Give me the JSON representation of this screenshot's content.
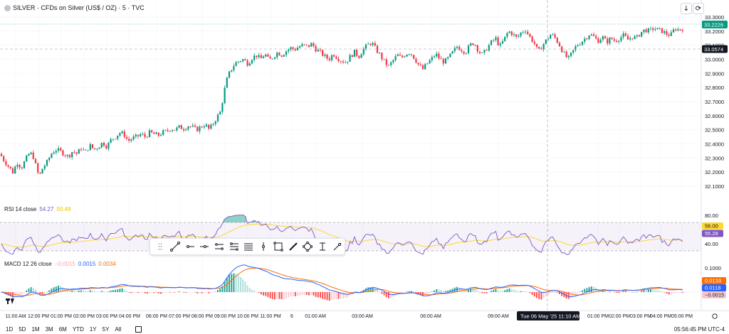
{
  "header": {
    "title": "SILVER · CFDs on Silver (US$ / OZ) · 5 · TVC",
    "symbol_icon": "silver-coin-icon",
    "down_icon": "download-arrow-icon",
    "fullscreen_icon": "fullscreen-icon"
  },
  "rsi": {
    "label": "RSI 14 close",
    "value": "54.27",
    "ma_value": "50.48",
    "upper_tag": "56.00",
    "lower_tag": "55.28",
    "levels": [
      "80.00",
      "40.00"
    ]
  },
  "macd": {
    "label": "MACD 12 26 close",
    "hist_value": "−0.0015",
    "macd_value": "0.0015",
    "signal_value": "0.0034",
    "tags": [
      "0.0133",
      "0.0118",
      "−0.0015"
    ],
    "level": "0.1000"
  },
  "price_tags": {
    "last": "33.2226",
    "crosshair": "33.0574"
  },
  "crosshair_time": "Tue 06 May '25   11:10 AM",
  "timeframes": [
    "1D",
    "5D",
    "1M",
    "3M",
    "6M",
    "YTD",
    "1Y",
    "5Y",
    "All"
  ],
  "clock": "05:56:45 PM UTC-4",
  "colors": {
    "up": "#089981",
    "down": "#f23645",
    "rsi": "#7e57c2",
    "rsi_ma": "#fdd835",
    "macd": "#2962ff",
    "signal": "#ff6d00",
    "last_tag": "#089981"
  },
  "chart_data": {
    "type": "candlestick",
    "title": "SILVER · CFDs on Silver (US$ / OZ) · 5 · TVC",
    "y_ticks": [
      "33.3000",
      "33.2000",
      "33.1000",
      "33.0000",
      "32.9000",
      "32.8000",
      "32.7000",
      "32.6000",
      "32.5000",
      "32.4000",
      "32.3000",
      "32.2000",
      "32.1000"
    ],
    "ylim": [
      32.05,
      33.33
    ],
    "x_ticks": [
      "11:00 AM",
      "12:00 PM",
      "01:00 PM",
      "02:00 PM",
      "03:00 PM",
      "04:00 PM",
      "06:00 PM",
      "07:00 PM",
      "08:00 PM",
      "09:00 PM",
      "10:00 PM",
      "11:00 PM",
      "6",
      "01:00 AM",
      "03:00 AM",
      "06:00 AM",
      "09:00 AM",
      "01:00 PM",
      "02:00 PM",
      "03:00 PM",
      "04:00 PM",
      "05:00 PM"
    ],
    "close_path": [
      [
        0,
        32.33
      ],
      [
        6,
        32.28
      ],
      [
        12,
        32.24
      ],
      [
        18,
        32.2
      ],
      [
        24,
        32.27
      ],
      [
        30,
        32.23
      ],
      [
        36,
        32.29
      ],
      [
        42,
        32.34
      ],
      [
        48,
        32.3
      ],
      [
        52,
        32.2
      ],
      [
        56,
        32.18
      ],
      [
        60,
        32.23
      ],
      [
        66,
        32.27
      ],
      [
        72,
        32.33
      ],
      [
        78,
        32.36
      ],
      [
        84,
        32.35
      ],
      [
        90,
        32.33
      ],
      [
        96,
        32.31
      ],
      [
        102,
        32.35
      ],
      [
        108,
        32.33
      ],
      [
        114,
        32.37
      ],
      [
        120,
        32.34
      ],
      [
        126,
        32.39
      ],
      [
        132,
        32.36
      ],
      [
        138,
        32.38
      ],
      [
        144,
        32.41
      ],
      [
        150,
        32.38
      ],
      [
        156,
        32.43
      ],
      [
        162,
        32.45
      ],
      [
        168,
        32.48
      ],
      [
        174,
        32.47
      ],
      [
        180,
        32.42
      ],
      [
        186,
        32.44
      ],
      [
        192,
        32.45
      ],
      [
        198,
        32.47
      ],
      [
        204,
        32.45
      ],
      [
        210,
        32.48
      ],
      [
        216,
        32.47
      ],
      [
        222,
        32.46
      ],
      [
        228,
        32.48
      ],
      [
        234,
        32.49
      ],
      [
        240,
        32.51
      ],
      [
        246,
        32.5
      ],
      [
        252,
        32.52
      ],
      [
        258,
        32.51
      ],
      [
        264,
        32.53
      ],
      [
        270,
        32.52
      ],
      [
        276,
        32.5
      ],
      [
        282,
        32.52
      ],
      [
        288,
        32.54
      ],
      [
        294,
        32.5
      ],
      [
        300,
        32.55
      ],
      [
        306,
        32.6
      ],
      [
        310,
        32.63
      ],
      [
        313,
        32.72
      ],
      [
        316,
        32.8
      ],
      [
        319,
        32.86
      ],
      [
        322,
        32.9
      ],
      [
        326,
        32.94
      ],
      [
        330,
        32.97
      ],
      [
        336,
        32.99
      ],
      [
        342,
        33.0
      ],
      [
        348,
        32.97
      ],
      [
        354,
        33.01
      ],
      [
        360,
        33.03
      ],
      [
        366,
        33.0
      ],
      [
        372,
        33.04
      ],
      [
        378,
        32.99
      ],
      [
        384,
        33.02
      ],
      [
        390,
        33.05
      ],
      [
        396,
        33.03
      ],
      [
        402,
        33.06
      ],
      [
        408,
        33.08
      ],
      [
        414,
        33.07
      ],
      [
        420,
        33.09
      ],
      [
        426,
        33.1
      ],
      [
        432,
        33.09
      ],
      [
        438,
        33.11
      ],
      [
        444,
        33.07
      ],
      [
        450,
        33.05
      ],
      [
        456,
        33.02
      ],
      [
        462,
        33.0
      ],
      [
        468,
        33.04
      ],
      [
        474,
        33.01
      ],
      [
        480,
        32.99
      ],
      [
        486,
        32.98
      ],
      [
        492,
        33.02
      ],
      [
        498,
        33.05
      ],
      [
        504,
        33.02
      ],
      [
        510,
        33.07
      ],
      [
        516,
        33.1
      ],
      [
        522,
        33.12
      ],
      [
        528,
        33.07
      ],
      [
        534,
        33.03
      ],
      [
        540,
        32.98
      ],
      [
        546,
        32.95
      ],
      [
        552,
        32.99
      ],
      [
        558,
        33.03
      ],
      [
        564,
        33.01
      ],
      [
        570,
        33.04
      ],
      [
        576,
        33.05
      ],
      [
        582,
        33.01
      ],
      [
        588,
        32.96
      ],
      [
        594,
        32.93
      ],
      [
        600,
        32.97
      ],
      [
        606,
        33.0
      ],
      [
        612,
        33.04
      ],
      [
        618,
        33.0
      ],
      [
        624,
        32.98
      ],
      [
        630,
        33.01
      ],
      [
        636,
        33.05
      ],
      [
        642,
        33.09
      ],
      [
        648,
        33.07
      ],
      [
        654,
        33.05
      ],
      [
        660,
        33.1
      ],
      [
        666,
        33.12
      ],
      [
        672,
        33.06
      ],
      [
        678,
        33.03
      ],
      [
        684,
        33.08
      ],
      [
        690,
        33.12
      ],
      [
        696,
        33.15
      ],
      [
        702,
        33.09
      ],
      [
        708,
        33.14
      ],
      [
        714,
        33.2
      ],
      [
        720,
        33.18
      ],
      [
        726,
        33.15
      ],
      [
        732,
        33.19
      ],
      [
        738,
        33.21
      ],
      [
        744,
        33.16
      ],
      [
        750,
        33.12
      ],
      [
        756,
        33.05
      ],
      [
        762,
        33.1
      ],
      [
        768,
        33.14
      ],
      [
        774,
        33.18
      ],
      [
        780,
        33.15
      ],
      [
        786,
        33.1
      ],
      [
        792,
        33.04
      ],
      [
        798,
        33.0
      ],
      [
        804,
        33.05
      ],
      [
        810,
        33.1
      ],
      [
        816,
        33.12
      ],
      [
        822,
        33.15
      ],
      [
        828,
        33.18
      ],
      [
        834,
        33.16
      ],
      [
        840,
        33.13
      ],
      [
        846,
        33.16
      ],
      [
        852,
        33.12
      ],
      [
        858,
        33.15
      ],
      [
        864,
        33.13
      ],
      [
        870,
        33.15
      ],
      [
        876,
        33.17
      ],
      [
        882,
        33.14
      ],
      [
        888,
        33.16
      ],
      [
        894,
        33.15
      ],
      [
        900,
        33.19
      ],
      [
        906,
        33.21
      ],
      [
        912,
        33.2
      ],
      [
        918,
        33.22
      ],
      [
        924,
        33.21
      ],
      [
        930,
        33.2
      ],
      [
        936,
        33.18
      ],
      [
        942,
        33.17
      ],
      [
        948,
        33.22
      ],
      [
        954,
        33.21
      ],
      [
        960,
        33.22
      ]
    ]
  }
}
